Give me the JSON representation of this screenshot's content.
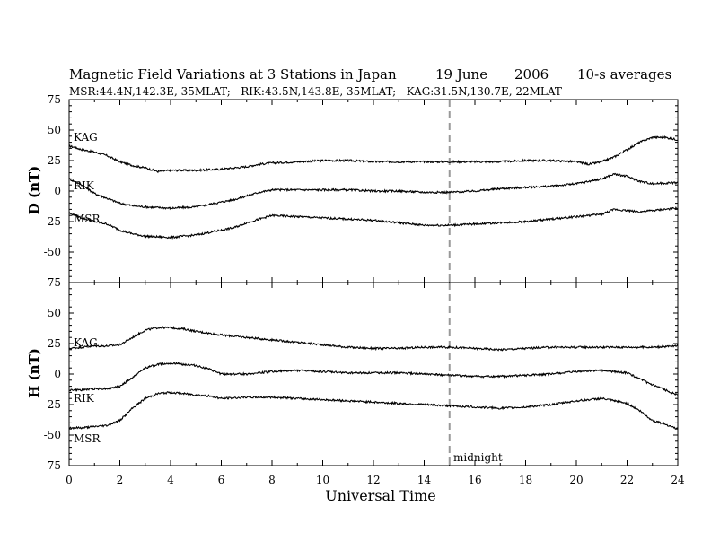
{
  "header": {
    "title": "Magnetic Field Variations at 3 Stations in Japan",
    "date_day": "19 June",
    "date_year": "2006",
    "averaging": "10-s averages",
    "stations_line": "MSR:44.4N,142.3E, 35MLAT;   RIK:43.5N,143.8E, 35MLAT;   KAG:31.5N,130.7E, 22MLAT"
  },
  "chart_data": [
    {
      "type": "line",
      "panel": "top",
      "ylabel": "D (nT)",
      "ylim": [
        -75,
        75
      ],
      "yticks": [
        "75",
        "50",
        "25",
        "0",
        "-25",
        "-50",
        "-75"
      ],
      "xlim": [
        0,
        24
      ],
      "series": [
        {
          "name": "KAG",
          "x": [
            0,
            0.5,
            1,
            1.5,
            2,
            2.5,
            3,
            3.5,
            4,
            5,
            6,
            7,
            7.5,
            8,
            9,
            10,
            11,
            12,
            13,
            14,
            15,
            16,
            17,
            18,
            19,
            20,
            20.5,
            21,
            21.5,
            22,
            22.5,
            23,
            23.5,
            24
          ],
          "values": [
            37,
            34,
            32,
            29,
            24,
            21,
            19,
            16,
            17,
            17,
            18,
            20,
            22,
            23,
            24,
            25,
            25,
            24,
            24,
            24,
            24,
            24,
            24,
            25,
            25,
            24,
            22,
            24,
            28,
            34,
            40,
            44,
            44,
            42
          ]
        },
        {
          "name": "RIK",
          "x": [
            0,
            0.5,
            1,
            1.5,
            2,
            2.5,
            3,
            4,
            5,
            6,
            6.5,
            7,
            7.5,
            8,
            9,
            10,
            11,
            12,
            13,
            14,
            15,
            16,
            17,
            18,
            19,
            20,
            21,
            21.5,
            22,
            22.5,
            23,
            24
          ],
          "values": [
            10,
            5,
            -2,
            -6,
            -10,
            -12,
            -13,
            -14,
            -13,
            -9,
            -7,
            -4,
            -1,
            1,
            1,
            1,
            1,
            0,
            0,
            -1,
            -1,
            0,
            2,
            3,
            4,
            6,
            10,
            14,
            12,
            8,
            6,
            7
          ]
        },
        {
          "name": "MSR",
          "x": [
            0,
            0.5,
            1,
            1.5,
            2,
            2.5,
            3,
            4,
            5,
            6,
            6.5,
            7,
            7.5,
            8,
            9,
            10,
            11,
            12,
            13,
            14,
            15,
            16,
            17,
            18,
            19,
            20,
            21,
            21.5,
            22,
            22.5,
            23,
            24
          ],
          "values": [
            -18,
            -22,
            -25,
            -27,
            -32,
            -35,
            -37,
            -38,
            -36,
            -32,
            -30,
            -26,
            -23,
            -20,
            -21,
            -22,
            -23,
            -24,
            -26,
            -28,
            -28,
            -27,
            -26,
            -25,
            -23,
            -21,
            -19,
            -15,
            -16,
            -17,
            -16,
            -14
          ]
        }
      ],
      "series_labels": [
        "KAG",
        "RIK",
        "MSR"
      ]
    },
    {
      "type": "line",
      "panel": "bottom",
      "ylabel": "H (nT)",
      "xlabel": "Universal Time",
      "ylim": [
        -75,
        75
      ],
      "yticks": [
        "75",
        "50",
        "25",
        "0",
        "-25",
        "-50",
        "-75"
      ],
      "xlim": [
        0,
        24
      ],
      "xticks": [
        "0",
        "2",
        "4",
        "6",
        "8",
        "10",
        "12",
        "14",
        "16",
        "18",
        "20",
        "22",
        "24"
      ],
      "series": [
        {
          "name": "KAG",
          "x": [
            0,
            0.5,
            1,
            1.5,
            2,
            2.5,
            3,
            3.5,
            4,
            4.5,
            5,
            6,
            7,
            8,
            9,
            10,
            11,
            12,
            13,
            14,
            15,
            16,
            17,
            18,
            19,
            20,
            21,
            22,
            23,
            24
          ],
          "values": [
            21,
            22,
            23,
            23,
            24,
            30,
            36,
            38,
            38,
            37,
            35,
            32,
            30,
            28,
            26,
            24,
            22,
            21,
            21,
            22,
            22,
            21,
            20,
            21,
            22,
            22,
            22,
            22,
            22,
            23
          ]
        },
        {
          "name": "RIK",
          "x": [
            0,
            0.5,
            1,
            1.5,
            2,
            2.5,
            3,
            3.5,
            4,
            4.5,
            5,
            5.5,
            6,
            7,
            8,
            9,
            10,
            11,
            12,
            13,
            14,
            15,
            16,
            17,
            18,
            19,
            20,
            21,
            22,
            22.5,
            23,
            23.5,
            24
          ],
          "values": [
            -13,
            -13,
            -12,
            -12,
            -10,
            -3,
            5,
            8,
            9,
            8,
            7,
            4,
            0,
            0,
            2,
            3,
            2,
            1,
            1,
            1,
            0,
            -1,
            -2,
            -2,
            -1,
            0,
            2,
            3,
            1,
            -4,
            -9,
            -13,
            -17
          ]
        },
        {
          "name": "MSR",
          "x": [
            0,
            0.5,
            1,
            1.5,
            2,
            2.5,
            3,
            3.5,
            4,
            4.5,
            5,
            5.5,
            6,
            7,
            8,
            9,
            10,
            11,
            12,
            13,
            14,
            15,
            16,
            17,
            18,
            19,
            20,
            21,
            22,
            22.5,
            23,
            23.5,
            24
          ],
          "values": [
            -44,
            -44,
            -43,
            -42,
            -38,
            -28,
            -20,
            -16,
            -15,
            -16,
            -17,
            -18,
            -20,
            -19,
            -19,
            -20,
            -21,
            -22,
            -23,
            -24,
            -25,
            -26,
            -27,
            -28,
            -27,
            -25,
            -22,
            -20,
            -24,
            -30,
            -38,
            -41,
            -45
          ]
        }
      ],
      "series_labels": [
        "KAG",
        "RIK",
        "MSR"
      ],
      "annotation": {
        "text": "midnight",
        "x": 15
      }
    }
  ],
  "colors": {
    "line": "#000000",
    "midnight_marker": "#999999"
  }
}
